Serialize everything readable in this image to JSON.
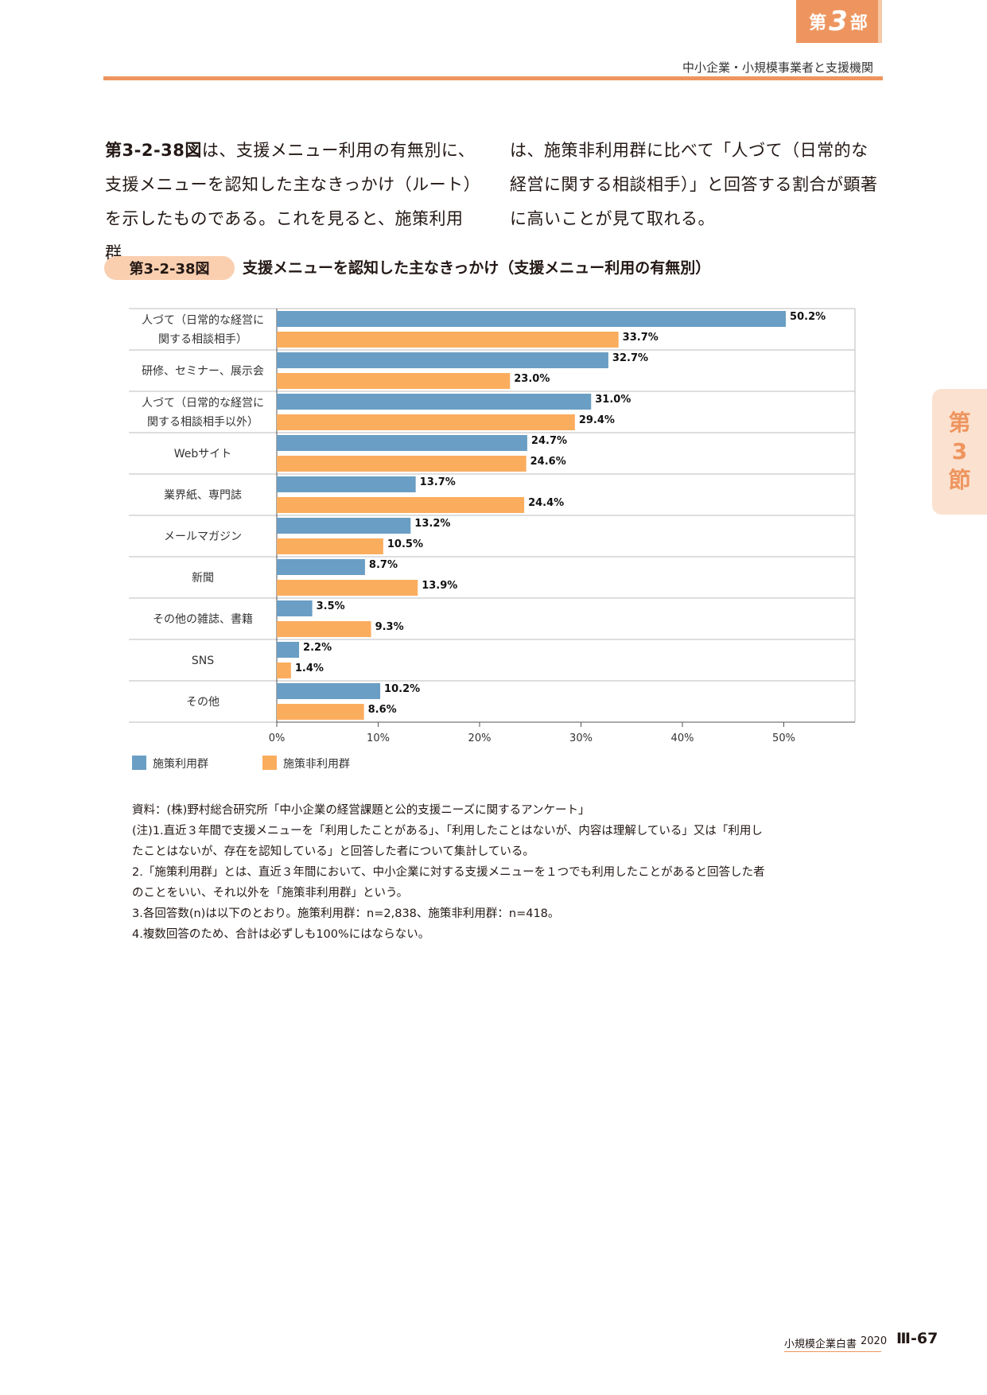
{
  "header": {
    "part_tab_prefix": "第",
    "part_tab_number": "3",
    "part_tab_suffix": "部",
    "running_title": "中小企業・小規模事業者と支援機関"
  },
  "side_tab": {
    "line1": "第",
    "line2": "3",
    "line3": "節"
  },
  "body": {
    "col1_lead": "第3-2-38図",
    "col1_text": "は、支援メニュー利用の有無別に、支援メニューを認知した主なきっかけ（ルート）を示したものである。これを見ると、施策利用群",
    "col2_text": "は、施策非利用群に比べて「人づて（日常的な経営に関する相談相手）」と回答する割合が顕著に高いことが見て取れる。"
  },
  "figure": {
    "number": "第3-2-38図",
    "title": "支援メニューを認知した主なきっかけ（支援メニュー利用の有無別）"
  },
  "chart_data": {
    "type": "bar",
    "orientation": "horizontal",
    "categories": [
      [
        "人づて（日常的な経営に",
        "関する相談相手）"
      ],
      [
        "研修、セミナー、展示会"
      ],
      [
        "人づて（日常的な経営に",
        "関する相談相手以外）"
      ],
      [
        "Webサイト"
      ],
      [
        "業界紙、専門誌"
      ],
      [
        "メールマガジン"
      ],
      [
        "新聞"
      ],
      [
        "その他の雑誌、書籍"
      ],
      [
        "SNS"
      ],
      [
        "その他"
      ]
    ],
    "series": [
      {
        "name": "施策利用群",
        "color": "#6a9ec4",
        "values": [
          50.2,
          32.7,
          31.0,
          24.7,
          13.7,
          13.2,
          8.7,
          3.5,
          2.2,
          10.2
        ],
        "labels": [
          "50.2%",
          "32.7%",
          "31.0%",
          "24.7%",
          "13.7%",
          "13.2%",
          "8.7%",
          "3.5%",
          "2.2%",
          "10.2%"
        ]
      },
      {
        "name": "施策非利用群",
        "color": "#fbad5e",
        "values": [
          33.7,
          23.0,
          29.4,
          24.6,
          24.4,
          10.5,
          13.9,
          9.3,
          1.4,
          8.6
        ],
        "labels": [
          "33.7%",
          "23.0%",
          "29.4%",
          "24.6%",
          "24.4%",
          "10.5%",
          "13.9%",
          "9.3%",
          "1.4%",
          "8.6%"
        ]
      }
    ],
    "xticks": [
      "0%",
      "10%",
      "20%",
      "30%",
      "40%",
      "50%"
    ],
    "xlim": [
      0,
      50
    ],
    "legend": "bottom-left",
    "grid": false
  },
  "notes": {
    "source": "資料：(株)野村総合研究所「中小企業の経営課題と公的支援ニーズに関するアンケート」",
    "note1a": "(注)1.直近３年間で支援メニューを「利用したことがある」、「利用したことはないが、内容は理解している」又は「利用し",
    "note1b": "たことはないが、存在を認知している」と回答した者について集計している。",
    "note2a": "2.「施策利用群」とは、直近３年間において、中小企業に対する支援メニューを１つでも利用したことがあると回答した者",
    "note2b": "のことをいい、それ以外を「施策非利用群」という。",
    "note3": "3.各回答数(n)は以下のとおり。施策利用群：n=2,838、施策非利用群：n=418。",
    "note4": "4.複数回答のため、合計は必ずしも100%にはならない。"
  },
  "footer": {
    "book_title": "小規模企業白書",
    "year": "2020",
    "page_number": "Ⅲ-67"
  }
}
